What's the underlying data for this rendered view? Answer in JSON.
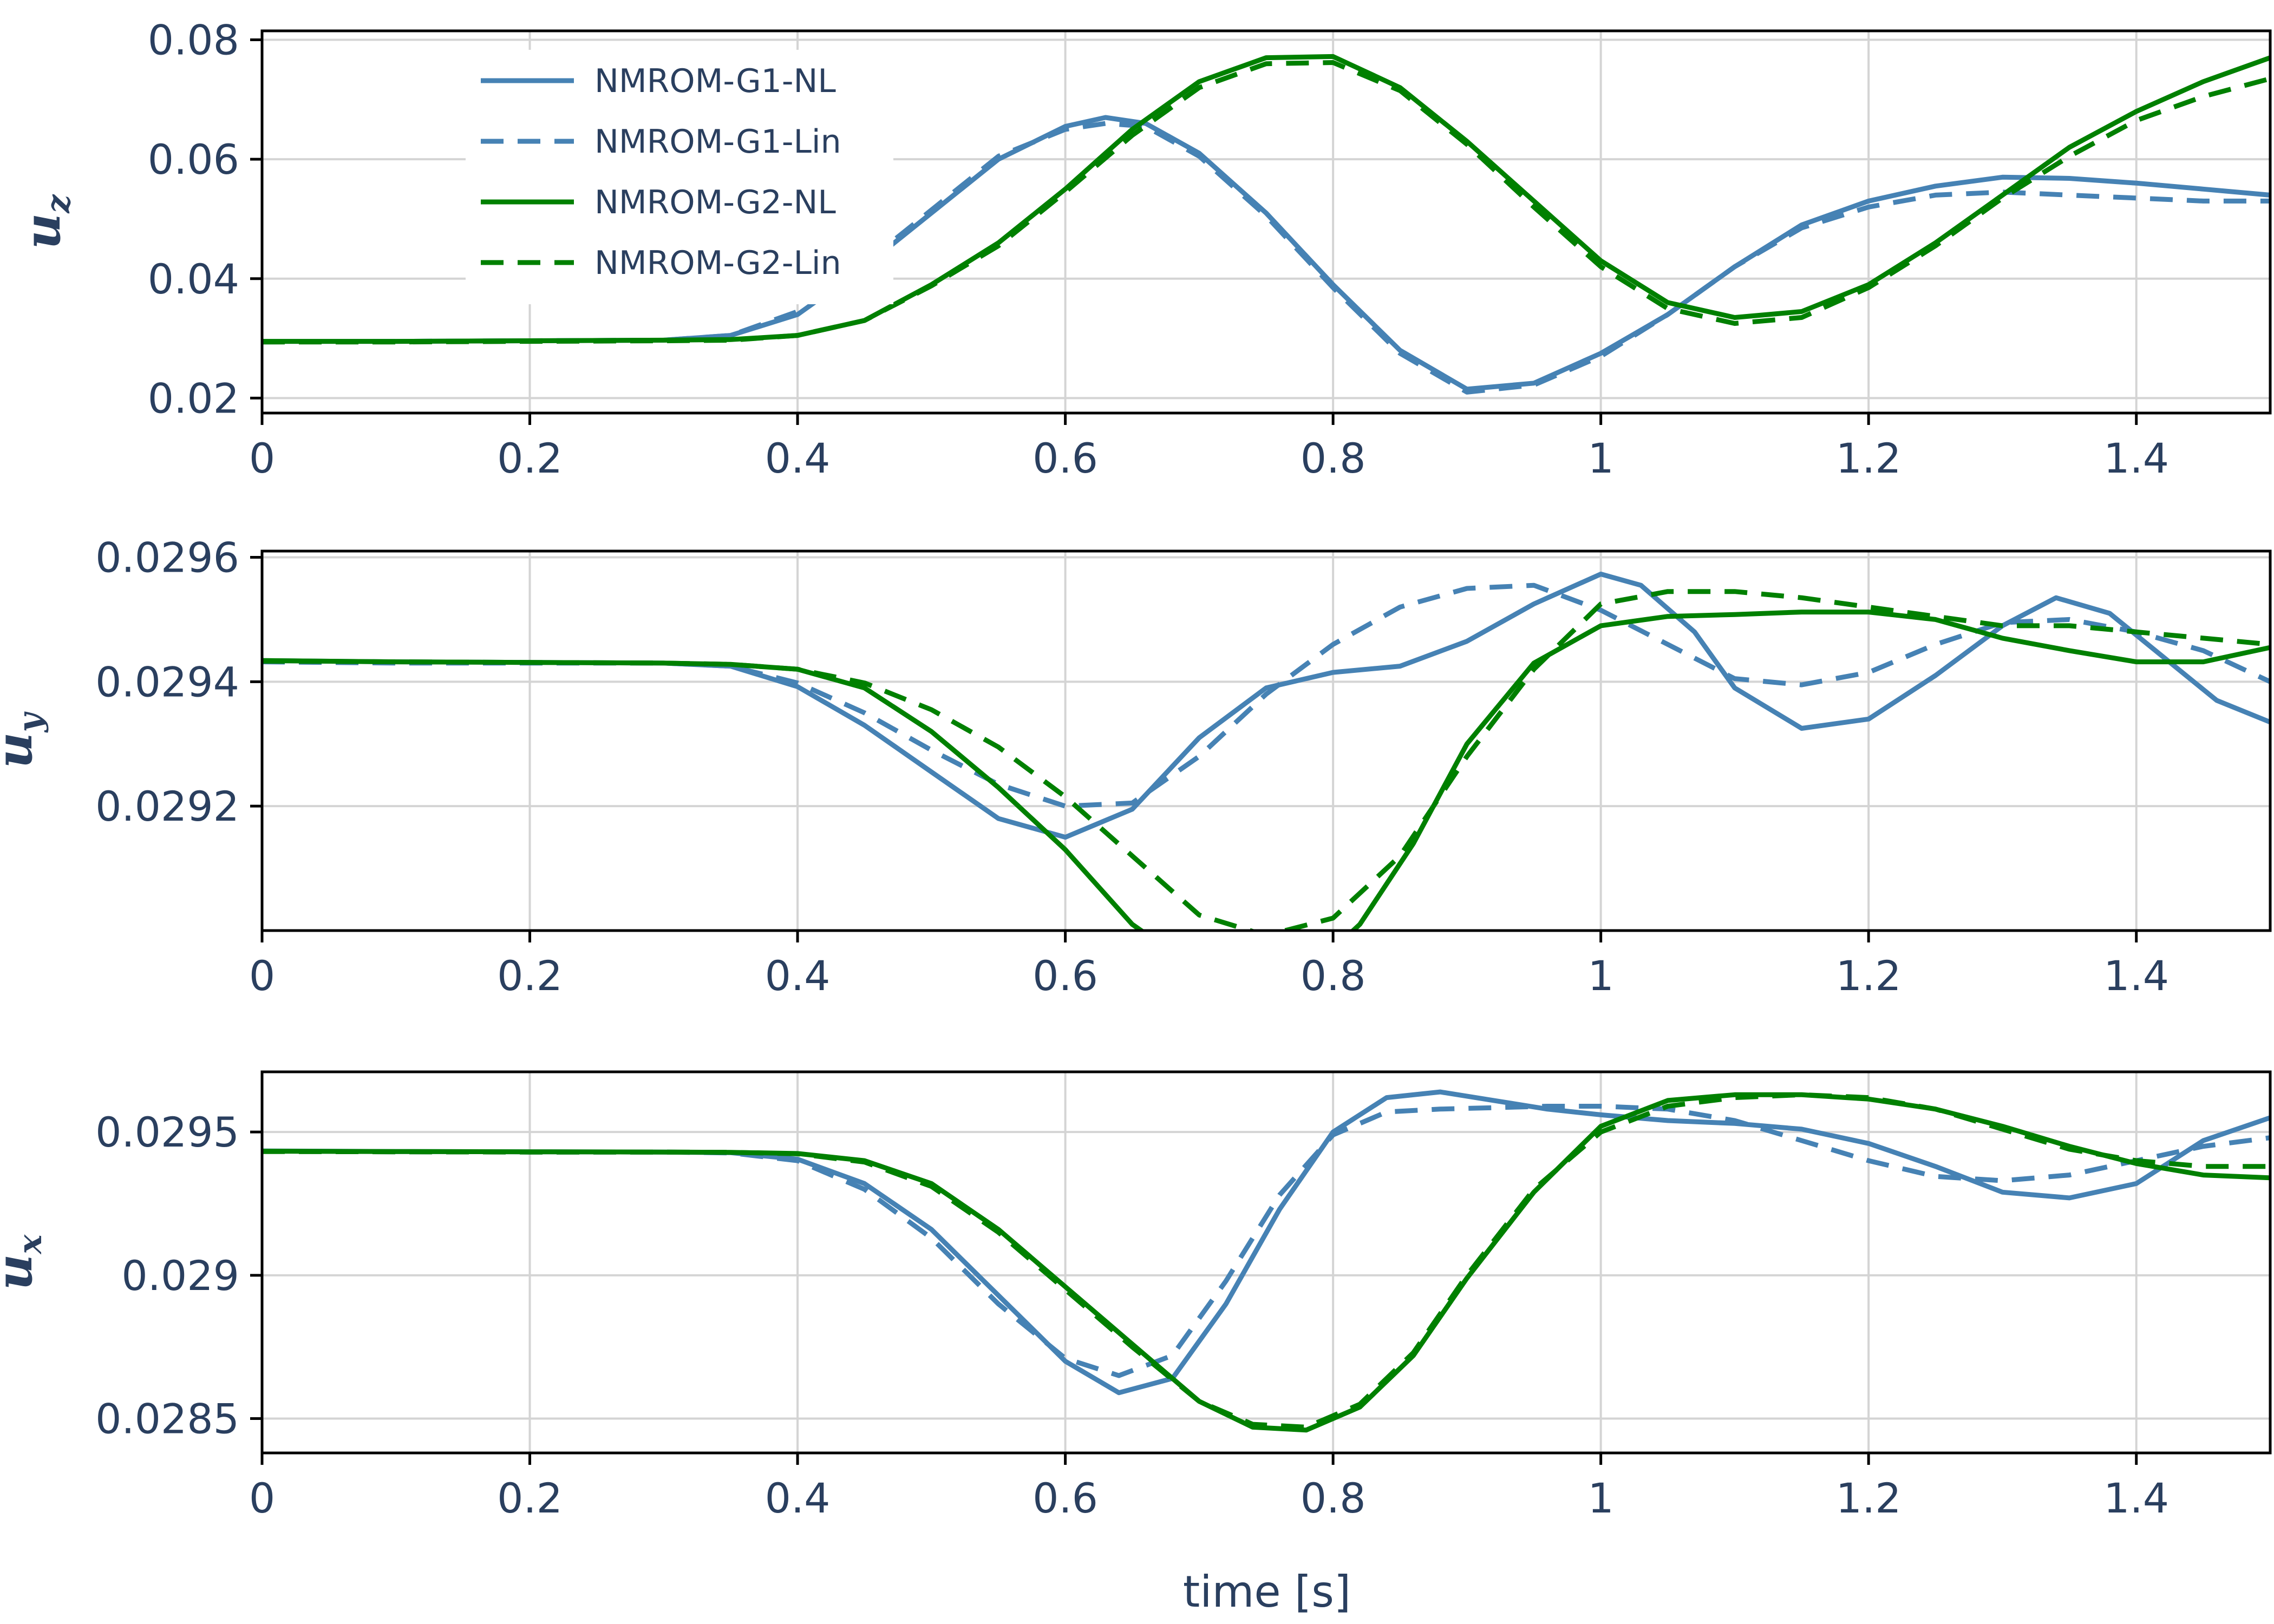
{
  "figure": {
    "xlabel": "time [s]"
  },
  "legend": {
    "items": [
      {
        "name": "NMROM-G1-NL",
        "color": "#4682b4",
        "dash": "solid"
      },
      {
        "name": "NMROM-G1-Lin",
        "color": "#4682b4",
        "dash": "dash"
      },
      {
        "name": "NMROM-G2-NL",
        "color": "#008000",
        "dash": "solid"
      },
      {
        "name": "NMROM-G2-Lin",
        "color": "#008000",
        "dash": "dash"
      }
    ]
  },
  "chart_data": [
    {
      "type": "line",
      "ylabel_main": "u",
      "ylabel_sub": "z",
      "xlim": [
        0,
        1.5
      ],
      "ylim": [
        0.0175,
        0.0815
      ],
      "xticks": [
        0,
        0.2,
        0.4,
        0.6,
        0.8,
        1,
        1.2,
        1.4
      ],
      "xtick_labels": [
        "0",
        "0.2",
        "0.4",
        "0.6",
        "0.8",
        "1",
        "1.2",
        "1.4"
      ],
      "yticks": [
        0.02,
        0.04,
        0.06,
        0.08
      ],
      "ytick_labels": [
        "0.02",
        "0.04",
        "0.06",
        "0.08"
      ],
      "grid": true,
      "legend_position": "top-left",
      "series": [
        {
          "name": "NMROM-G1-NL",
          "x": [
            0,
            0.1,
            0.2,
            0.3,
            0.35,
            0.4,
            0.45,
            0.5,
            0.55,
            0.6,
            0.63,
            0.66,
            0.7,
            0.75,
            0.8,
            0.85,
            0.9,
            0.95,
            1.0,
            1.05,
            1.1,
            1.15,
            1.2,
            1.25,
            1.3,
            1.35,
            1.4,
            1.45,
            1.5
          ],
          "y": [
            0.0295,
            0.0295,
            0.0296,
            0.0297,
            0.0305,
            0.034,
            0.042,
            0.051,
            0.06,
            0.0655,
            0.067,
            0.066,
            0.061,
            0.051,
            0.039,
            0.028,
            0.0215,
            0.0225,
            0.0275,
            0.034,
            0.042,
            0.049,
            0.053,
            0.0555,
            0.057,
            0.0568,
            0.056,
            0.055,
            0.054
          ]
        },
        {
          "name": "NMROM-G1-Lin",
          "x": [
            0,
            0.1,
            0.2,
            0.3,
            0.35,
            0.4,
            0.45,
            0.5,
            0.55,
            0.6,
            0.63,
            0.66,
            0.7,
            0.75,
            0.8,
            0.85,
            0.9,
            0.95,
            1.0,
            1.05,
            1.1,
            1.15,
            1.2,
            1.25,
            1.3,
            1.35,
            1.4,
            1.45,
            1.5
          ],
          "y": [
            0.0294,
            0.0295,
            0.0296,
            0.0297,
            0.0305,
            0.0345,
            0.0425,
            0.0515,
            0.0605,
            0.065,
            0.066,
            0.0655,
            0.0605,
            0.0505,
            0.0385,
            0.0275,
            0.021,
            0.0222,
            0.027,
            0.034,
            0.042,
            0.0485,
            0.052,
            0.054,
            0.0545,
            0.054,
            0.0535,
            0.053,
            0.053
          ]
        },
        {
          "name": "NMROM-G2-NL",
          "x": [
            0,
            0.1,
            0.2,
            0.3,
            0.35,
            0.4,
            0.45,
            0.5,
            0.55,
            0.6,
            0.65,
            0.7,
            0.75,
            0.8,
            0.85,
            0.9,
            0.95,
            1.0,
            1.05,
            1.1,
            1.15,
            1.2,
            1.25,
            1.3,
            1.35,
            1.4,
            1.45,
            1.5
          ],
          "y": [
            0.0295,
            0.0295,
            0.0296,
            0.0297,
            0.0298,
            0.0305,
            0.033,
            0.039,
            0.046,
            0.055,
            0.065,
            0.073,
            0.077,
            0.0772,
            0.072,
            0.063,
            0.053,
            0.043,
            0.036,
            0.0335,
            0.0345,
            0.039,
            0.046,
            0.054,
            0.062,
            0.068,
            0.073,
            0.077
          ]
        },
        {
          "name": "NMROM-G2-Lin",
          "x": [
            0,
            0.1,
            0.2,
            0.3,
            0.35,
            0.4,
            0.45,
            0.5,
            0.55,
            0.6,
            0.65,
            0.7,
            0.75,
            0.8,
            0.85,
            0.9,
            0.95,
            1.0,
            1.05,
            1.1,
            1.15,
            1.2,
            1.25,
            1.3,
            1.35,
            1.4,
            1.45,
            1.5
          ],
          "y": [
            0.0294,
            0.0294,
            0.0295,
            0.0296,
            0.0297,
            0.0305,
            0.033,
            0.0388,
            0.0455,
            0.0545,
            0.064,
            0.072,
            0.076,
            0.0762,
            0.0715,
            0.0625,
            0.052,
            0.042,
            0.035,
            0.0325,
            0.0335,
            0.0385,
            0.0455,
            0.0535,
            0.0605,
            0.0665,
            0.0705,
            0.0735
          ]
        }
      ]
    },
    {
      "type": "line",
      "ylabel_main": "u",
      "ylabel_sub": "y",
      "xlim": [
        0,
        1.5
      ],
      "ylim": [
        0.029,
        0.02961
      ],
      "xticks": [
        0,
        0.2,
        0.4,
        0.6,
        0.8,
        1,
        1.2,
        1.4
      ],
      "xtick_labels": [
        "0",
        "0.2",
        "0.4",
        "0.6",
        "0.8",
        "1",
        "1.2",
        "1.4"
      ],
      "yticks": [
        0.0292,
        0.0294,
        0.0296
      ],
      "ytick_labels": [
        "0.0292",
        "0.0294",
        "0.0296"
      ],
      "grid": true,
      "series": [
        {
          "name": "NMROM-G1-NL",
          "x": [
            0,
            0.1,
            0.2,
            0.3,
            0.35,
            0.4,
            0.45,
            0.5,
            0.55,
            0.6,
            0.65,
            0.7,
            0.75,
            0.8,
            0.85,
            0.9,
            0.95,
            1.0,
            1.03,
            1.07,
            1.1,
            1.15,
            1.2,
            1.25,
            1.3,
            1.34,
            1.38,
            1.42,
            1.46,
            1.5
          ],
          "y": [
            0.029434,
            0.029432,
            0.029431,
            0.02943,
            0.029425,
            0.029392,
            0.02933,
            0.029255,
            0.02918,
            0.02915,
            0.029195,
            0.02931,
            0.02939,
            0.029415,
            0.029425,
            0.029465,
            0.029525,
            0.029573,
            0.029555,
            0.02948,
            0.02939,
            0.029325,
            0.02934,
            0.02941,
            0.02949,
            0.029535,
            0.02951,
            0.02944,
            0.02937,
            0.029335
          ]
        },
        {
          "name": "NMROM-G1-Lin",
          "x": [
            0,
            0.1,
            0.2,
            0.3,
            0.35,
            0.4,
            0.45,
            0.5,
            0.55,
            0.6,
            0.65,
            0.7,
            0.75,
            0.8,
            0.85,
            0.9,
            0.95,
            1.0,
            1.05,
            1.1,
            1.15,
            1.2,
            1.25,
            1.3,
            1.35,
            1.4,
            1.45,
            1.5
          ],
          "y": [
            0.029432,
            0.02943,
            0.02943,
            0.02943,
            0.029425,
            0.029398,
            0.02935,
            0.02929,
            0.029235,
            0.0292,
            0.029205,
            0.02928,
            0.02938,
            0.02946,
            0.02952,
            0.02955,
            0.029555,
            0.029515,
            0.02946,
            0.029405,
            0.029395,
            0.029415,
            0.02946,
            0.029495,
            0.0295,
            0.02948,
            0.02945,
            0.0294
          ]
        },
        {
          "name": "NMROM-G2-NL",
          "x": [
            0,
            0.1,
            0.2,
            0.3,
            0.35,
            0.4,
            0.45,
            0.5,
            0.55,
            0.6,
            0.65,
            0.7,
            0.74,
            0.78,
            0.82,
            0.86,
            0.9,
            0.95,
            1.0,
            1.05,
            1.1,
            1.15,
            1.2,
            1.25,
            1.3,
            1.35,
            1.4,
            1.45,
            1.5
          ],
          "y": [
            0.029434,
            0.029432,
            0.029431,
            0.02943,
            0.029428,
            0.02942,
            0.02939,
            0.02932,
            0.02923,
            0.02913,
            0.02901,
            0.028935,
            0.02891,
            0.02893,
            0.02901,
            0.02914,
            0.0293,
            0.02943,
            0.02949,
            0.029505,
            0.029508,
            0.029512,
            0.029512,
            0.0295,
            0.02947,
            0.02945,
            0.029432,
            0.029432,
            0.029455
          ]
        },
        {
          "name": "NMROM-G2-Lin",
          "x": [
            0,
            0.1,
            0.2,
            0.3,
            0.35,
            0.4,
            0.45,
            0.5,
            0.55,
            0.6,
            0.65,
            0.7,
            0.75,
            0.8,
            0.85,
            0.9,
            0.95,
            1.0,
            1.05,
            1.1,
            1.15,
            1.2,
            1.25,
            1.3,
            1.35,
            1.4,
            1.45,
            1.5
          ],
          "y": [
            0.029433,
            0.029432,
            0.029431,
            0.02943,
            0.029428,
            0.02942,
            0.029398,
            0.029355,
            0.029295,
            0.029215,
            0.02912,
            0.029025,
            0.028992,
            0.02902,
            0.02912,
            0.02928,
            0.02942,
            0.029525,
            0.029545,
            0.029545,
            0.029535,
            0.02952,
            0.029505,
            0.02949,
            0.02949,
            0.02948,
            0.02947,
            0.02946
          ]
        }
      ]
    },
    {
      "type": "line",
      "ylabel_main": "u",
      "ylabel_sub": "x",
      "xlim": [
        0,
        1.5
      ],
      "ylim": [
        0.02838,
        0.02971
      ],
      "xticks": [
        0,
        0.2,
        0.4,
        0.6,
        0.8,
        1,
        1.2,
        1.4
      ],
      "xtick_labels": [
        "0",
        "0.2",
        "0.4",
        "0.6",
        "0.8",
        "1",
        "1.2",
        "1.4"
      ],
      "yticks": [
        0.0285,
        0.029,
        0.0295
      ],
      "ytick_labels": [
        "0.0285",
        "0.029",
        "0.0295"
      ],
      "grid": true,
      "series": [
        {
          "name": "NMROM-G1-NL",
          "x": [
            0,
            0.1,
            0.2,
            0.3,
            0.35,
            0.4,
            0.45,
            0.5,
            0.55,
            0.6,
            0.64,
            0.68,
            0.72,
            0.76,
            0.8,
            0.84,
            0.88,
            0.92,
            0.96,
            1.0,
            1.05,
            1.1,
            1.15,
            1.2,
            1.25,
            1.3,
            1.35,
            1.4,
            1.45,
            1.5
          ],
          "y": [
            0.029434,
            0.029432,
            0.029431,
            0.02943,
            0.029428,
            0.029405,
            0.02932,
            0.02916,
            0.02893,
            0.0287,
            0.02859,
            0.02864,
            0.0289,
            0.02923,
            0.0295,
            0.02962,
            0.02964,
            0.02961,
            0.02958,
            0.02956,
            0.02954,
            0.02953,
            0.02951,
            0.02946,
            0.02938,
            0.02929,
            0.02927,
            0.02932,
            0.02947,
            0.02955
          ]
        },
        {
          "name": "NMROM-G1-Lin",
          "x": [
            0,
            0.1,
            0.2,
            0.3,
            0.35,
            0.4,
            0.45,
            0.5,
            0.55,
            0.6,
            0.64,
            0.68,
            0.72,
            0.76,
            0.8,
            0.84,
            0.88,
            0.92,
            0.96,
            1.0,
            1.05,
            1.1,
            1.15,
            1.2,
            1.25,
            1.3,
            1.35,
            1.4,
            1.45,
            1.5
          ],
          "y": [
            0.029433,
            0.029431,
            0.02943,
            0.02943,
            0.029427,
            0.0294,
            0.0293,
            0.02913,
            0.0289,
            0.02871,
            0.02865,
            0.02872,
            0.02898,
            0.02928,
            0.02949,
            0.02957,
            0.02958,
            0.029585,
            0.02959,
            0.02959,
            0.02958,
            0.02954,
            0.02947,
            0.0294,
            0.029345,
            0.02933,
            0.02935,
            0.0294,
            0.02945,
            0.02948
          ]
        },
        {
          "name": "NMROM-G2-NL",
          "x": [
            0,
            0.1,
            0.2,
            0.3,
            0.35,
            0.4,
            0.45,
            0.5,
            0.55,
            0.6,
            0.65,
            0.7,
            0.74,
            0.78,
            0.82,
            0.86,
            0.9,
            0.95,
            1.0,
            1.05,
            1.1,
            1.15,
            1.2,
            1.25,
            1.3,
            1.35,
            1.4,
            1.45,
            1.5
          ],
          "y": [
            0.029433,
            0.029432,
            0.029431,
            0.02943,
            0.029429,
            0.029425,
            0.0294,
            0.02932,
            0.02916,
            0.02896,
            0.02876,
            0.02856,
            0.02847,
            0.02846,
            0.02854,
            0.02872,
            0.02899,
            0.02929,
            0.02952,
            0.02961,
            0.02963,
            0.02963,
            0.029615,
            0.02958,
            0.02952,
            0.02945,
            0.02939,
            0.02935,
            0.02934
          ]
        },
        {
          "name": "NMROM-G2-Lin",
          "x": [
            0,
            0.1,
            0.2,
            0.3,
            0.35,
            0.4,
            0.45,
            0.5,
            0.55,
            0.6,
            0.65,
            0.7,
            0.74,
            0.78,
            0.82,
            0.86,
            0.9,
            0.95,
            1.0,
            1.05,
            1.1,
            1.15,
            1.2,
            1.25,
            1.3,
            1.35,
            1.4,
            1.45,
            1.5
          ],
          "y": [
            0.029432,
            0.029431,
            0.02943,
            0.02943,
            0.029429,
            0.029424,
            0.029395,
            0.02931,
            0.02915,
            0.02895,
            0.02875,
            0.02856,
            0.02848,
            0.02847,
            0.02855,
            0.02873,
            0.029,
            0.0293,
            0.0295,
            0.02959,
            0.02962,
            0.02963,
            0.02962,
            0.02958,
            0.02951,
            0.02944,
            0.0294,
            0.02938,
            0.02938
          ]
        }
      ]
    }
  ]
}
